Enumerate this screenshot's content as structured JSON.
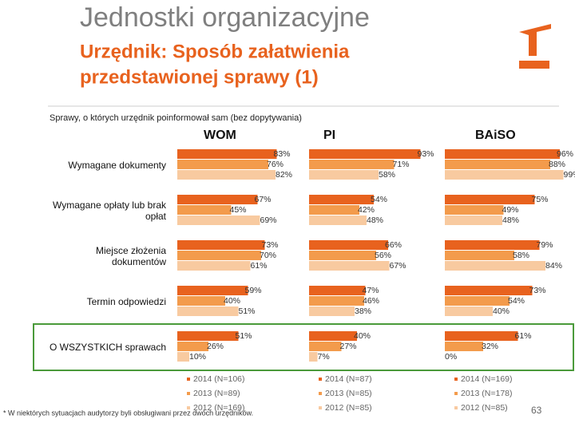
{
  "title": "Jednostki organizacyjne",
  "subtitle": [
    "Urzędnik: Sposób załatwienia",
    "przedstawionej sprawy (1)"
  ],
  "chart_title": "Sprawy, o których urzędnik poinformował sam (bez dopytywania)",
  "footnote": "* W niektórych sytuacjach audytorzy byli obsługiwani przez dwóch urzędników.",
  "page_number": "63",
  "chart_data": [
    {
      "type": "bar",
      "orientation": "horizontal",
      "title": "WOM",
      "xlim": [
        0,
        100
      ],
      "categories": [
        "Wymagane dokumenty",
        "Wymagane opłaty lub brak opłat",
        "Miejsce złożenia dokumentów",
        "Termin odpowiedzi",
        "O WSZYSTKICH sprawach"
      ],
      "series": [
        {
          "name": "2014 (N=106)",
          "color": "#e8621e",
          "values": [
            83,
            67,
            73,
            59,
            51
          ],
          "value_labels": [
            "83%",
            "67%",
            "73%",
            "59%",
            "51%"
          ]
        },
        {
          "name": "2013 (N=89)",
          "color": "#f39b4c",
          "values": [
            76,
            45,
            70,
            40,
            26
          ],
          "value_labels": [
            "76%",
            "45%",
            "70%",
            "40%",
            "26%"
          ]
        },
        {
          "name": "2012 (N=169)",
          "color": "#f8caa0",
          "values": [
            82,
            69,
            61,
            51,
            10
          ],
          "value_labels": [
            "82%",
            "69%",
            "61%",
            "51%",
            "10%"
          ]
        }
      ]
    },
    {
      "type": "bar",
      "orientation": "horizontal",
      "title": "PI",
      "xlim": [
        0,
        100
      ],
      "series": [
        {
          "name": "2014 (N=87)",
          "color": "#e8621e",
          "values": [
            93,
            54,
            66,
            47,
            40
          ],
          "value_labels": [
            "93%",
            "54%",
            "66%",
            "47%",
            "40%"
          ]
        },
        {
          "name": "2013 (N=85)",
          "color": "#f39b4c",
          "values": [
            71,
            42,
            56,
            46,
            27
          ],
          "value_labels": [
            "71%",
            "42%",
            "56%",
            "46%",
            "27%"
          ]
        },
        {
          "name": "2012 (N=85)",
          "color": "#f8caa0",
          "values": [
            58,
            48,
            67,
            38,
            7
          ],
          "value_labels": [
            "58%",
            "48%",
            "67%",
            "38%",
            "7%"
          ]
        }
      ]
    },
    {
      "type": "bar",
      "orientation": "horizontal",
      "title": "BAiSO",
      "xlim": [
        0,
        100
      ],
      "series": [
        {
          "name": "2014 (N=169)",
          "color": "#e8621e",
          "values": [
            96,
            75,
            79,
            73,
            61
          ],
          "value_labels": [
            "96%",
            "75%",
            "79%",
            "73%",
            "61%"
          ]
        },
        {
          "name": "2013 (N=178)",
          "color": "#f39b4c",
          "values": [
            88,
            49,
            58,
            54,
            32
          ],
          "value_labels": [
            "88%",
            "49%",
            "58%",
            "54%",
            "32%"
          ]
        },
        {
          "name": "2012 (N=85)",
          "color": "#f8caa0",
          "values": [
            99,
            48,
            84,
            40,
            0
          ],
          "value_labels": [
            "99%",
            "48%",
            "84%",
            "40%",
            "0%"
          ]
        }
      ]
    }
  ]
}
